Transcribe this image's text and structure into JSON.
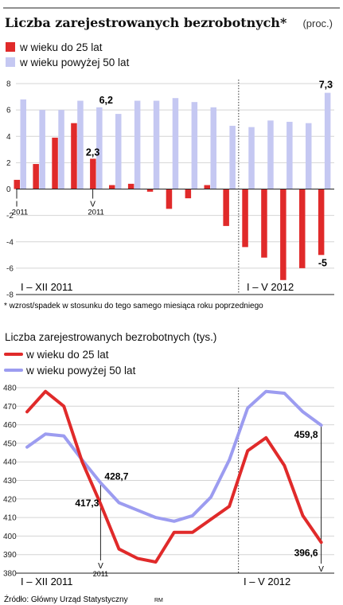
{
  "chart_data": [
    {
      "type": "bar",
      "title": "Liczba zarejestrowanych bezrobotnych*",
      "unit": "(proc.)",
      "footnote": "* wzrost/spadek w stosunku do tego samego miesiąca roku poprzedniego",
      "ylim": [
        -8,
        8
      ],
      "yticks": [
        -8,
        -6,
        -4,
        -2,
        0,
        2,
        4,
        6,
        8
      ],
      "grid": true,
      "legend_position": "top-left",
      "series": [
        {
          "name": "w wieku do 25 lat",
          "color": "#e02a2a",
          "values": [
            0.7,
            1.9,
            3.9,
            5.0,
            2.3,
            0.3,
            0.4,
            -0.2,
            -1.5,
            -0.7,
            0.3,
            -2.8,
            -4.4,
            -5.2,
            -6.9,
            -6.0,
            -5.0
          ]
        },
        {
          "name": "w wieku powyżej 50 lat",
          "color": "#c5c8f2",
          "values": [
            6.8,
            6.0,
            6.0,
            6.7,
            6.2,
            5.7,
            6.7,
            6.7,
            6.9,
            6.6,
            6.2,
            4.8,
            4.7,
            5.2,
            5.1,
            5.0,
            7.3
          ]
        }
      ],
      "value_labels": {
        "red_may2011": "2,3",
        "blue_may2011": "6,2",
        "blue_may2012": "7,3",
        "red_may2012": "-5"
      },
      "tick_labels": {
        "i": "I",
        "i_year": "2011",
        "v": "V",
        "v_year": "2011"
      },
      "period_labels": [
        "I – XII 2011",
        "I – V 2012"
      ]
    },
    {
      "type": "line",
      "title": "Liczba zarejestrowanych bezrobotnych (tys.)",
      "ylim": [
        380,
        480
      ],
      "yticks": [
        380,
        390,
        400,
        410,
        420,
        430,
        440,
        450,
        460,
        470,
        480
      ],
      "grid": true,
      "legend_position": "top-left",
      "series": [
        {
          "name": "w wieku do 25 lat",
          "color": "#e02a2a",
          "values": [
            467,
            478,
            470,
            440,
            417.3,
            393,
            388,
            386,
            402,
            402,
            409,
            416,
            446,
            453,
            438,
            411,
            396.6
          ]
        },
        {
          "name": "w wieku powyżej 50 lat",
          "color": "#9c9cf0",
          "values": [
            448,
            455,
            454,
            441,
            428.7,
            418,
            414,
            410,
            408,
            411,
            421,
            441,
            469,
            478,
            477,
            467,
            459.8
          ]
        }
      ],
      "value_labels": {
        "blue_may2011": "428,7",
        "red_may2011": "417,3",
        "blue_may2012": "459,8",
        "red_may2012": "396,6"
      },
      "tick_labels": {
        "v": "V",
        "v_year": "2011",
        "v_end": "V"
      },
      "period_labels": [
        "I – XII 2011",
        "I – V 2012"
      ]
    }
  ],
  "source": "Źródło: Główny Urząd Statystyczny",
  "author": "RM"
}
